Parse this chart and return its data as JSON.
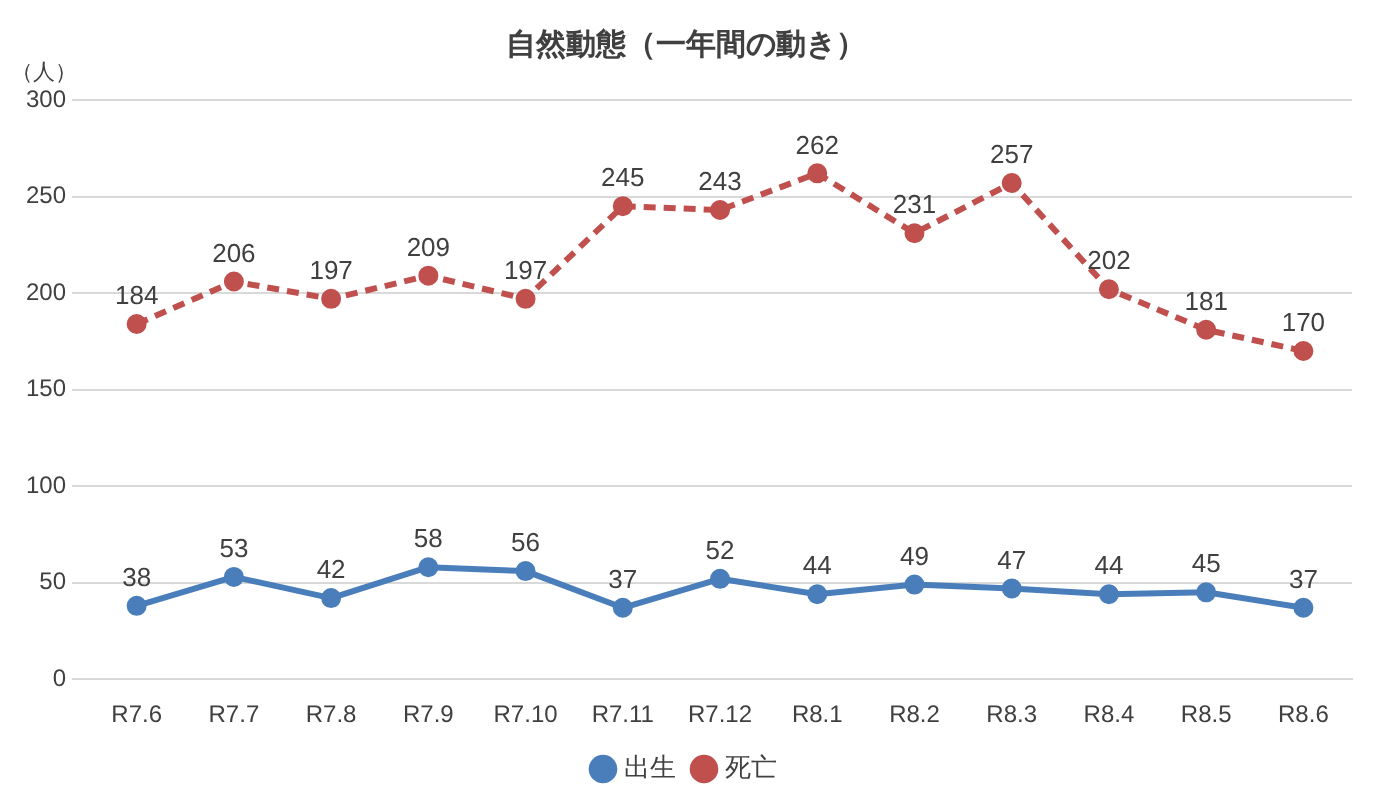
{
  "chart_data": {
    "type": "line",
    "title": "自然動態（一年間の動き）",
    "ylabel": "（人）",
    "categories": [
      "R7.6",
      "R7.7",
      "R7.8",
      "R7.9",
      "R7.10",
      "R7.11",
      "R7.12",
      "R8.1",
      "R8.2",
      "R8.3",
      "R8.4",
      "R8.5",
      "R8.6"
    ],
    "series": [
      {
        "name": "出生",
        "color": "#4a7ebb",
        "line_style": "solid",
        "values": [
          38,
          53,
          42,
          58,
          56,
          37,
          52,
          44,
          49,
          47,
          44,
          45,
          37
        ]
      },
      {
        "name": "死亡",
        "color": "#c0504d",
        "line_style": "dashed",
        "values": [
          184,
          206,
          197,
          209,
          197,
          245,
          243,
          262,
          231,
          257,
          202,
          181,
          170
        ]
      }
    ],
    "ylim": [
      0,
      300
    ],
    "yticks": [
      0,
      50,
      100,
      150,
      200,
      250,
      300
    ],
    "grid": "y",
    "legend": "bottom",
    "marker": "circle",
    "data_labels": true
  }
}
